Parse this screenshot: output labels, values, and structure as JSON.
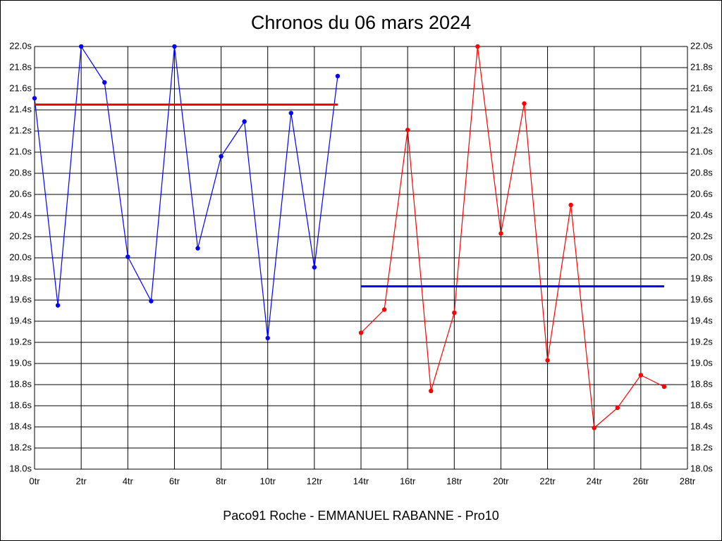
{
  "chart_data": {
    "type": "line",
    "title": "Chronos du 06 mars 2024",
    "subtitle": "Paco91 Roche - EMMANUEL RABANNE - Pro10",
    "xlim": [
      0,
      28
    ],
    "ylim": [
      18.0,
      22.0
    ],
    "grid": true,
    "xticks": [
      {
        "value": 0,
        "label": "0tr"
      },
      {
        "value": 2,
        "label": "2tr"
      },
      {
        "value": 4,
        "label": "4tr"
      },
      {
        "value": 6,
        "label": "6tr"
      },
      {
        "value": 8,
        "label": "8tr"
      },
      {
        "value": 10,
        "label": "10tr"
      },
      {
        "value": 12,
        "label": "12tr"
      },
      {
        "value": 14,
        "label": "14tr"
      },
      {
        "value": 16,
        "label": "16tr"
      },
      {
        "value": 18,
        "label": "18tr"
      },
      {
        "value": 20,
        "label": "20tr"
      },
      {
        "value": 22,
        "label": "22tr"
      },
      {
        "value": 24,
        "label": "24tr"
      },
      {
        "value": 26,
        "label": "26tr"
      },
      {
        "value": 28,
        "label": "28tr"
      }
    ],
    "yticks": [
      {
        "value": 18.0,
        "label": "18.0s"
      },
      {
        "value": 18.2,
        "label": "18.2s"
      },
      {
        "value": 18.4,
        "label": "18.4s"
      },
      {
        "value": 18.6,
        "label": "18.6s"
      },
      {
        "value": 18.8,
        "label": "18.8s"
      },
      {
        "value": 19.0,
        "label": "19.0s"
      },
      {
        "value": 19.2,
        "label": "19.2s"
      },
      {
        "value": 19.4,
        "label": "19.4s"
      },
      {
        "value": 19.6,
        "label": "19.6s"
      },
      {
        "value": 19.8,
        "label": "19.8s"
      },
      {
        "value": 20.0,
        "label": "20.0s"
      },
      {
        "value": 20.2,
        "label": "20.2s"
      },
      {
        "value": 20.4,
        "label": "20.4s"
      },
      {
        "value": 20.6,
        "label": "20.6s"
      },
      {
        "value": 20.8,
        "label": "20.8s"
      },
      {
        "value": 21.0,
        "label": "21.0s"
      },
      {
        "value": 21.2,
        "label": "21.2s"
      },
      {
        "value": 21.4,
        "label": "21.4s"
      },
      {
        "value": 21.6,
        "label": "21.6s"
      },
      {
        "value": 21.8,
        "label": "21.8s"
      },
      {
        "value": 22.0,
        "label": "22.0s"
      }
    ],
    "series": [
      {
        "color": "#0000ff",
        "markers": true,
        "line_width": 1.2,
        "x": [
          0,
          1,
          2,
          3,
          4,
          5,
          6,
          7,
          8,
          9,
          10,
          11,
          12,
          13
        ],
        "values": [
          21.51,
          19.55,
          22.0,
          21.66,
          20.01,
          19.59,
          22.0,
          20.09,
          20.96,
          21.29,
          19.24,
          21.37,
          19.91,
          21.72
        ]
      },
      {
        "color": "#ff0000",
        "markers": true,
        "line_width": 1.2,
        "x": [
          14,
          15,
          16,
          17,
          18,
          19,
          20,
          21,
          22,
          23,
          24,
          25,
          26,
          27
        ],
        "values": [
          19.29,
          19.51,
          21.21,
          18.74,
          19.48,
          22.0,
          20.23,
          21.46,
          19.03,
          20.5,
          18.39,
          18.58,
          18.89,
          18.78
        ]
      },
      {
        "color": "#ff0000",
        "markers": false,
        "line_width": 3,
        "x": [
          0,
          13
        ],
        "values": [
          21.45,
          21.45
        ]
      },
      {
        "color": "#0000ff",
        "markers": false,
        "line_width": 3,
        "x": [
          14,
          27
        ],
        "values": [
          19.73,
          19.73
        ]
      }
    ]
  }
}
